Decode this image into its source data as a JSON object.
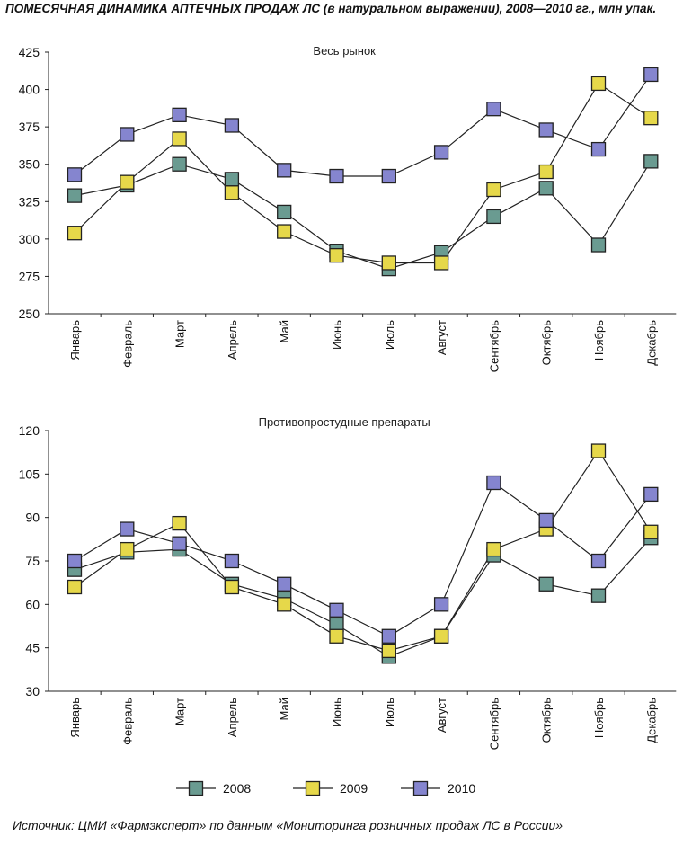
{
  "figure": {
    "title": "ПОМЕСЯЧНАЯ ДИНАМИКА АПТЕЧНЫХ ПРОДАЖ ЛС (в натуральном выражении), 2008—2010 гг., млн упак.",
    "source": "Источник: ЦМИ «Фармэксперт» по данным «Мониторинга розничных продаж ЛС в России»"
  },
  "colors": {
    "2008": "#6a9b91",
    "2009": "#e6d84a",
    "2010": "#8585cf",
    "line": "#222222",
    "axis": "#222222"
  },
  "chart_data": [
    {
      "type": "line",
      "title": "Весь рынок",
      "categories": [
        "Январь",
        "Февраль",
        "Март",
        "Апрель",
        "Май",
        "Июнь",
        "Июль",
        "Август",
        "Сентябрь",
        "Октябрь",
        "Ноябрь",
        "Декабрь"
      ],
      "ylim": [
        250,
        425
      ],
      "yticks": [
        250,
        275,
        300,
        325,
        350,
        375,
        400,
        425
      ],
      "series": [
        {
          "name": "2008",
          "values": [
            329,
            336,
            350,
            340,
            318,
            292,
            280,
            291,
            315,
            334,
            296,
            352
          ]
        },
        {
          "name": "2009",
          "values": [
            304,
            338,
            367,
            331,
            305,
            289,
            284,
            284,
            333,
            345,
            404,
            381
          ]
        },
        {
          "name": "2010",
          "values": [
            343,
            370,
            383,
            376,
            346,
            342,
            342,
            358,
            387,
            373,
            360,
            410
          ]
        }
      ],
      "legend": "bottom",
      "grid": false
    },
    {
      "type": "line",
      "title": "Противопростудные препараты",
      "categories": [
        "Январь",
        "Февраль",
        "Март",
        "Апрель",
        "Май",
        "Июнь",
        "Июль",
        "Август",
        "Сентябрь",
        "Октябрь",
        "Ноябрь",
        "Декабрь"
      ],
      "ylim": [
        30,
        120
      ],
      "yticks": [
        30,
        45,
        60,
        75,
        90,
        105,
        120
      ],
      "series": [
        {
          "name": "2008",
          "values": [
            72,
            78,
            79,
            67,
            62,
            53,
            42,
            49,
            77,
            67,
            63,
            83
          ]
        },
        {
          "name": "2009",
          "values": [
            66,
            79,
            88,
            66,
            60,
            49,
            44,
            49,
            79,
            86,
            113,
            85
          ]
        },
        {
          "name": "2010",
          "values": [
            75,
            86,
            81,
            75,
            67,
            58,
            49,
            60,
            102,
            89,
            75,
            98
          ]
        }
      ],
      "legend": "bottom",
      "grid": false
    }
  ]
}
